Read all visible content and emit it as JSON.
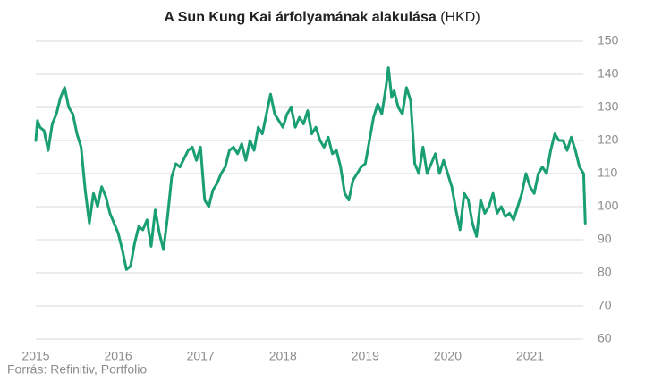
{
  "chart_data": {
    "type": "line",
    "title": "A Sun Kung Kai árfolyamának alakulása",
    "title_unit": "(HKD)",
    "source": "Forrás: Refinitiv, Portfolio",
    "color": "#1a9e74",
    "grid": true,
    "xlim": [
      2015,
      2021.7
    ],
    "xticks": [
      2015,
      2016,
      2017,
      2018,
      2019,
      2020,
      2021
    ],
    "ylim": [
      60,
      150
    ],
    "yticks": [
      60,
      70,
      80,
      90,
      100,
      110,
      120,
      130,
      140,
      150
    ],
    "x": [
      2015.0,
      2015.02,
      2015.05,
      2015.1,
      2015.15,
      2015.2,
      2015.25,
      2015.3,
      2015.35,
      2015.4,
      2015.45,
      2015.5,
      2015.55,
      2015.6,
      2015.65,
      2015.7,
      2015.75,
      2015.8,
      2015.85,
      2015.9,
      2015.95,
      2016.0,
      2016.05,
      2016.1,
      2016.15,
      2016.2,
      2016.25,
      2016.3,
      2016.35,
      2016.4,
      2016.45,
      2016.5,
      2016.55,
      2016.6,
      2016.65,
      2016.7,
      2016.75,
      2016.85,
      2016.9,
      2016.95,
      2017.0,
      2017.05,
      2017.1,
      2017.15,
      2017.2,
      2017.25,
      2017.3,
      2017.35,
      2017.4,
      2017.45,
      2017.5,
      2017.55,
      2017.6,
      2017.65,
      2017.7,
      2017.75,
      2017.8,
      2017.85,
      2017.9,
      2017.95,
      2018.0,
      2018.05,
      2018.1,
      2018.15,
      2018.2,
      2018.25,
      2018.3,
      2018.35,
      2018.4,
      2018.45,
      2018.5,
      2018.55,
      2018.6,
      2018.65,
      2018.7,
      2018.75,
      2018.8,
      2018.85,
      2018.9,
      2018.95,
      2019.0,
      2019.05,
      2019.1,
      2019.15,
      2019.2,
      2019.25,
      2019.28,
      2019.32,
      2019.35,
      2019.4,
      2019.45,
      2019.5,
      2019.55,
      2019.6,
      2019.65,
      2019.7,
      2019.75,
      2019.8,
      2019.85,
      2019.9,
      2019.95,
      2020.0,
      2020.05,
      2020.1,
      2020.15,
      2020.2,
      2020.25,
      2020.3,
      2020.35,
      2020.4,
      2020.45,
      2020.5,
      2020.55,
      2020.6,
      2020.65,
      2020.7,
      2020.75,
      2020.8,
      2020.85,
      2020.9,
      2020.95,
      2021.0,
      2021.05,
      2021.1,
      2021.15,
      2021.2,
      2021.25,
      2021.3,
      2021.35,
      2021.4,
      2021.45,
      2021.5,
      2021.55,
      2021.6,
      2021.65,
      2021.67
    ],
    "values": [
      120,
      126,
      124,
      123,
      117,
      125,
      128,
      133,
      136,
      130,
      128,
      122,
      118,
      105,
      95,
      104,
      100,
      106,
      103,
      98,
      95,
      92,
      87,
      81,
      82,
      89,
      94,
      93,
      96,
      88,
      99,
      92,
      87,
      97,
      109,
      113,
      112,
      117,
      118,
      114,
      118,
      102,
      100,
      105,
      107,
      110,
      112,
      117,
      118,
      116,
      119,
      114,
      120,
      117,
      124,
      122,
      128,
      134,
      128,
      126,
      124,
      128,
      130,
      124,
      127,
      125,
      129,
      122,
      124,
      120,
      118,
      121,
      116,
      117,
      112,
      104,
      102,
      108,
      110,
      112,
      113,
      120,
      127,
      131,
      128,
      136,
      142,
      133,
      135,
      130,
      128,
      136,
      132,
      113,
      110,
      118,
      110,
      113,
      116,
      110,
      114,
      110,
      106,
      99,
      93,
      104,
      102,
      95,
      91,
      102,
      98,
      100,
      104,
      98,
      100,
      97,
      98,
      96,
      100,
      104,
      110,
      106,
      104,
      110,
      112,
      110,
      117,
      122,
      120,
      120,
      117,
      121,
      117,
      112,
      110,
      95
    ]
  }
}
